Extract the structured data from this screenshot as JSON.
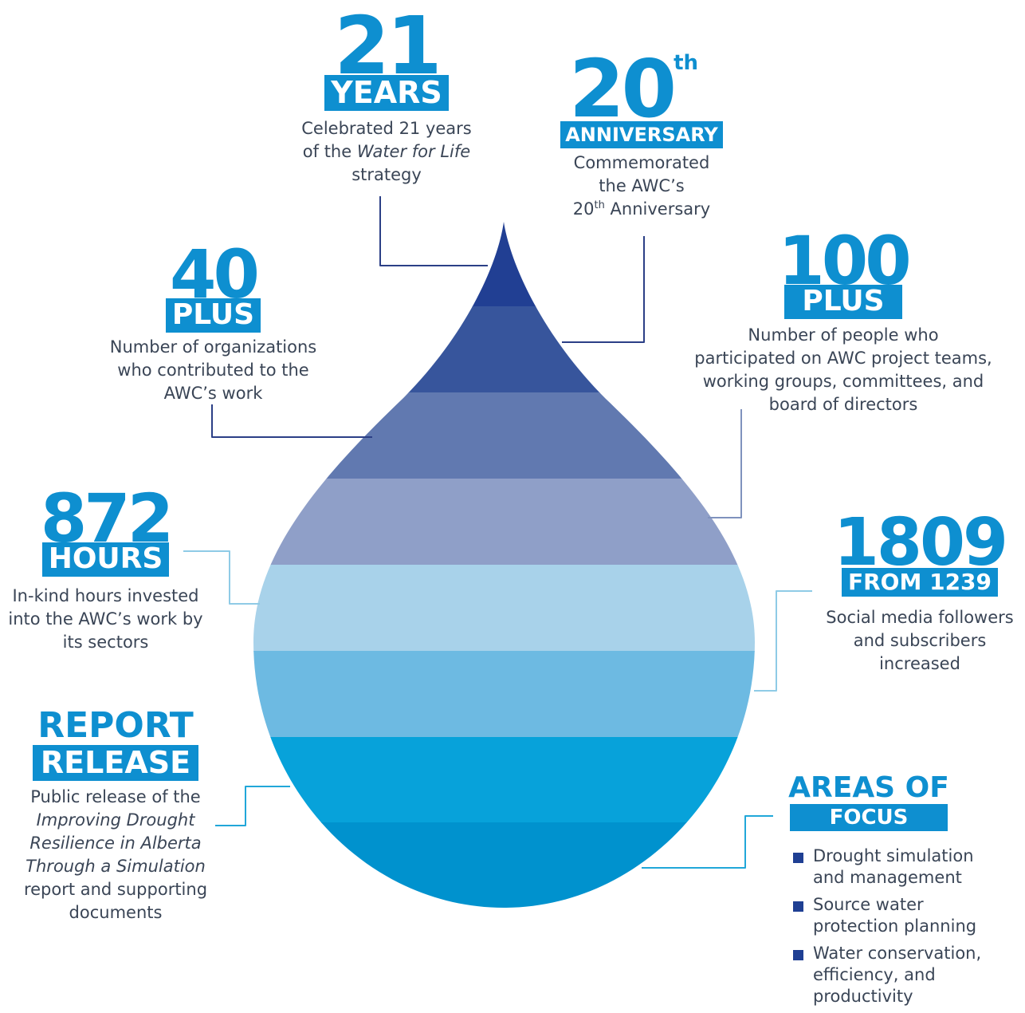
{
  "drop_colors": [
    "#213f93",
    "#37559c",
    "#6179b0",
    "#8f9fc8",
    "#a8d2ea",
    "#6dbae2",
    "#07a2da",
    "#0092ce"
  ],
  "connector_colors": {
    "dark": "#2b3f86",
    "mid": "#7f92bd",
    "light": "#8fcbe6",
    "teal": "#21a7d9"
  },
  "accent_color": "#0e8fd0",
  "stats": {
    "years": {
      "number": "21",
      "tag": "YEARS",
      "desc": [
        "Celebrated 21 years",
        "of the ",
        "Water for Life",
        "strategy"
      ]
    },
    "anniversary": {
      "number": "20",
      "suffix": "th",
      "tag": "ANNIVERSARY",
      "desc": [
        "Commemorated",
        "the AWC’s",
        "20",
        "th",
        " Anniversary"
      ]
    },
    "organizations": {
      "number": "40",
      "tag": "PLUS",
      "desc": [
        "Number of organizations",
        "who contributed to the",
        "AWC’s work"
      ]
    },
    "people": {
      "number": "100",
      "tag": "PLUS",
      "desc": [
        "Number of people who",
        "participated on AWC project teams,",
        "working groups, committees, and",
        "board of directors"
      ]
    },
    "hours": {
      "number": "872",
      "tag": "HOURS",
      "desc": [
        "In-kind hours invested",
        "into the AWC’s work by",
        "its sectors"
      ]
    },
    "followers": {
      "number": "1809",
      "tag": "FROM 1239",
      "desc": [
        "Social media followers",
        "and subscribers",
        "increased"
      ]
    },
    "report": {
      "title": "REPORT",
      "tag": "RELEASE",
      "desc": [
        "Public release of the",
        "Improving Drought",
        "Resilience in Alberta",
        "Through a Simulation",
        "report and supporting",
        "documents"
      ]
    },
    "focus": {
      "title": "AREAS OF",
      "tag": "FOCUS",
      "items": [
        "Drought simulation and management",
        "Source water protection planning",
        "Water conservation, efficiency, and productivity"
      ]
    }
  }
}
